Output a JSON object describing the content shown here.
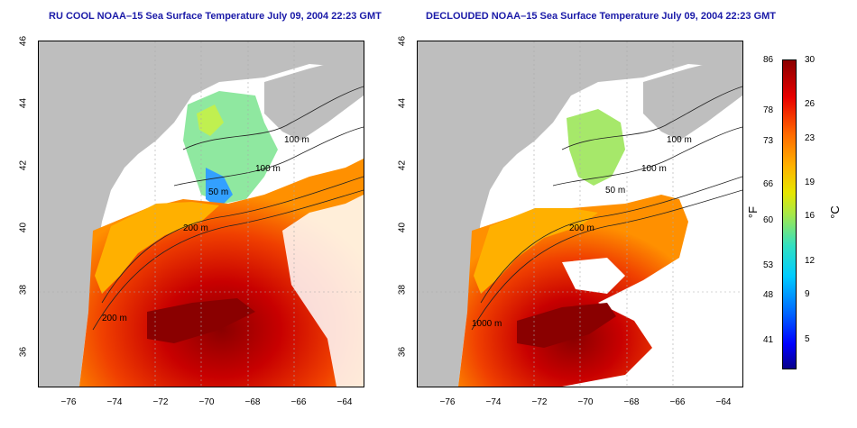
{
  "left_panel": {
    "title": "RU COOL NOAA–15 Sea Surface Temperature July 09, 2004 22:23 GMT"
  },
  "right_panel": {
    "title": "DECLOUDED NOAA–15 Sea Surface Temperature July 09, 2004 22:23 GMT"
  },
  "axes": {
    "lat_ticks": [
      "46",
      "44",
      "42",
      "40",
      "38",
      "36"
    ],
    "lon_ticks": [
      "−76",
      "−74",
      "−72",
      "−70",
      "−68",
      "−66",
      "−64"
    ]
  },
  "contours": {
    "left": [
      "100 m",
      "100 m",
      "50 m",
      "200 m",
      "200 m"
    ],
    "right": [
      "100 m",
      "100 m",
      "50 m",
      "200 m",
      "1000 m"
    ]
  },
  "colorbar": {
    "fahrenheit_ticks": [
      "86",
      "78",
      "73",
      "66",
      "60",
      "53",
      "48",
      "41"
    ],
    "celsius_ticks": [
      "30",
      "26",
      "23",
      "19",
      "16",
      "12",
      "9",
      "5"
    ],
    "fahrenheit_unit": "°F",
    "celsius_unit": "°C",
    "range_celsius": [
      2,
      30
    ],
    "colors": {
      "warm": "#8a0000",
      "mid": "#e6e600",
      "cool": "#0000ff",
      "land": "#bebebe"
    }
  }
}
